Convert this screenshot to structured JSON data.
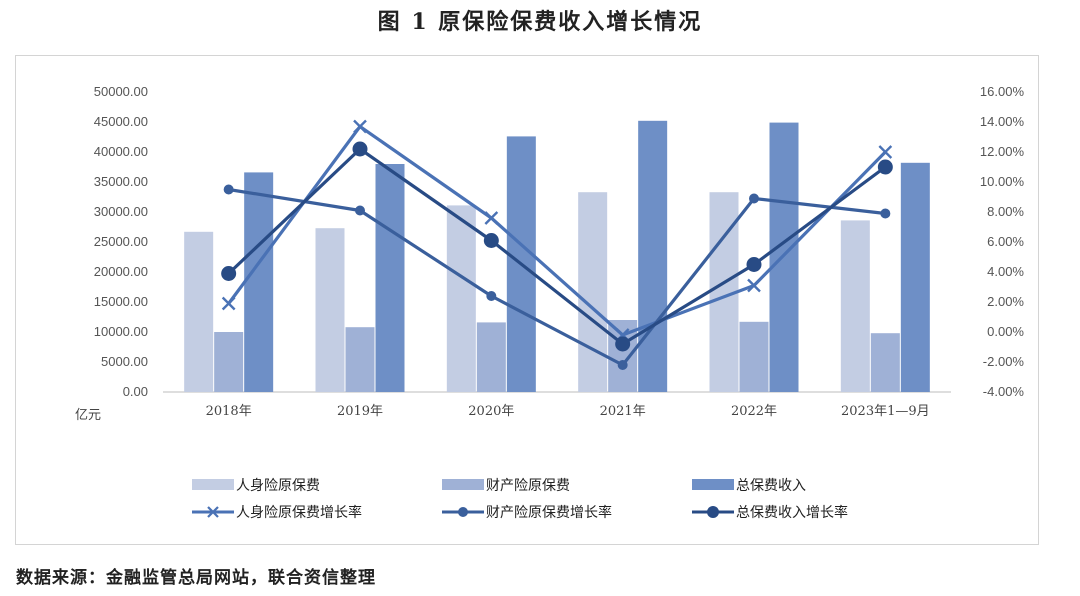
{
  "figure_title": "图 1  原保险保费收入增长情况",
  "source_note": "数据来源：金融监管总局网站，联合资信整理",
  "chart_data": {
    "type": "bar",
    "categories": [
      "2018年",
      "2019年",
      "2020年",
      "2021年",
      "2022年",
      "2023年1—9月"
    ],
    "y_left": {
      "unit_label": "亿元",
      "ylim": [
        0,
        50000
      ],
      "ticks": [
        "0.00",
        "5000.00",
        "10000.00",
        "15000.00",
        "20000.00",
        "25000.00",
        "30000.00",
        "35000.00",
        "40000.00",
        "45000.00",
        "50000.00"
      ]
    },
    "y_right": {
      "ylim": [
        -4,
        16
      ],
      "ticks": [
        "-4.00%",
        "-2.00%",
        "0.00%",
        "2.00%",
        "4.00%",
        "6.00%",
        "8.00%",
        "10.00%",
        "12.00%",
        "14.00%",
        "16.00%"
      ]
    },
    "bar_series": [
      {
        "name": "人身险原保费",
        "color": "#c3cde3",
        "values": [
          26700,
          27300,
          31100,
          33300,
          33300,
          28600
        ]
      },
      {
        "name": "财产险原保费",
        "color": "#9fb1d6",
        "values": [
          10000,
          10800,
          11600,
          12000,
          11700,
          9800
        ]
      },
      {
        "name": "总保费收入",
        "color": "#6e8fc6",
        "values": [
          36600,
          38000,
          42600,
          45200,
          44900,
          38200
        ]
      }
    ],
    "line_series": [
      {
        "name": "人身险原保费增长率",
        "color": "#4a72b5",
        "marker": "x",
        "values": [
          1.9,
          13.7,
          7.6,
          -0.2,
          3.1,
          12.0
        ]
      },
      {
        "name": "财产险原保费增长率",
        "color": "#3a5f9c",
        "marker": "dot",
        "values": [
          9.5,
          8.1,
          2.4,
          -2.2,
          8.9,
          7.9
        ]
      },
      {
        "name": "总保费收入增长率",
        "color": "#284b85",
        "marker": "dot-large",
        "values": [
          3.9,
          12.2,
          6.1,
          -0.8,
          4.5,
          11.0
        ]
      }
    ],
    "grid": false,
    "legend_position": "bottom"
  }
}
